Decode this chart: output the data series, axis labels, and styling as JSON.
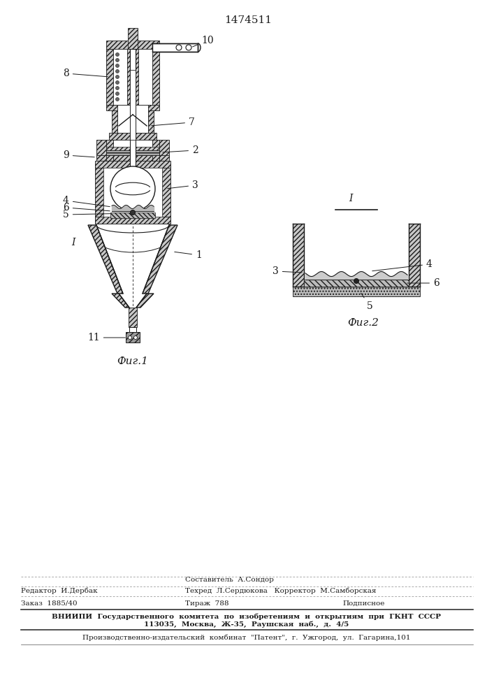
{
  "title": "1474511",
  "fig1_label": "Фиг.1",
  "fig2_label": "Фиг.2",
  "line_color": "#1a1a1a",
  "hatch_fc": "#c8c8c8",
  "footer": {
    "editor": "Редактор  И.Дербак",
    "composer": "Составитель  А.Сондор",
    "techred": "Техред  Л.Сердюкова",
    "corrector": "Корректор  М.Самборская",
    "order": "Заказ  1885/40",
    "tirazh": "Тираж  788",
    "podpisnoe": "Подписное",
    "vniipи": "ВНИИПИ  Государственного  комитета  по  изобретениям  и  открытиям  при  ГКНТ  СССР",
    "address": "113035,  Москва,  Ж-35,  Раушская  наб.,  д.  4/5",
    "kombinat": "Производственно-издательский  комбинат  \"Патент\",  г.  Ужгород,  ул.  Гагарина,101"
  }
}
